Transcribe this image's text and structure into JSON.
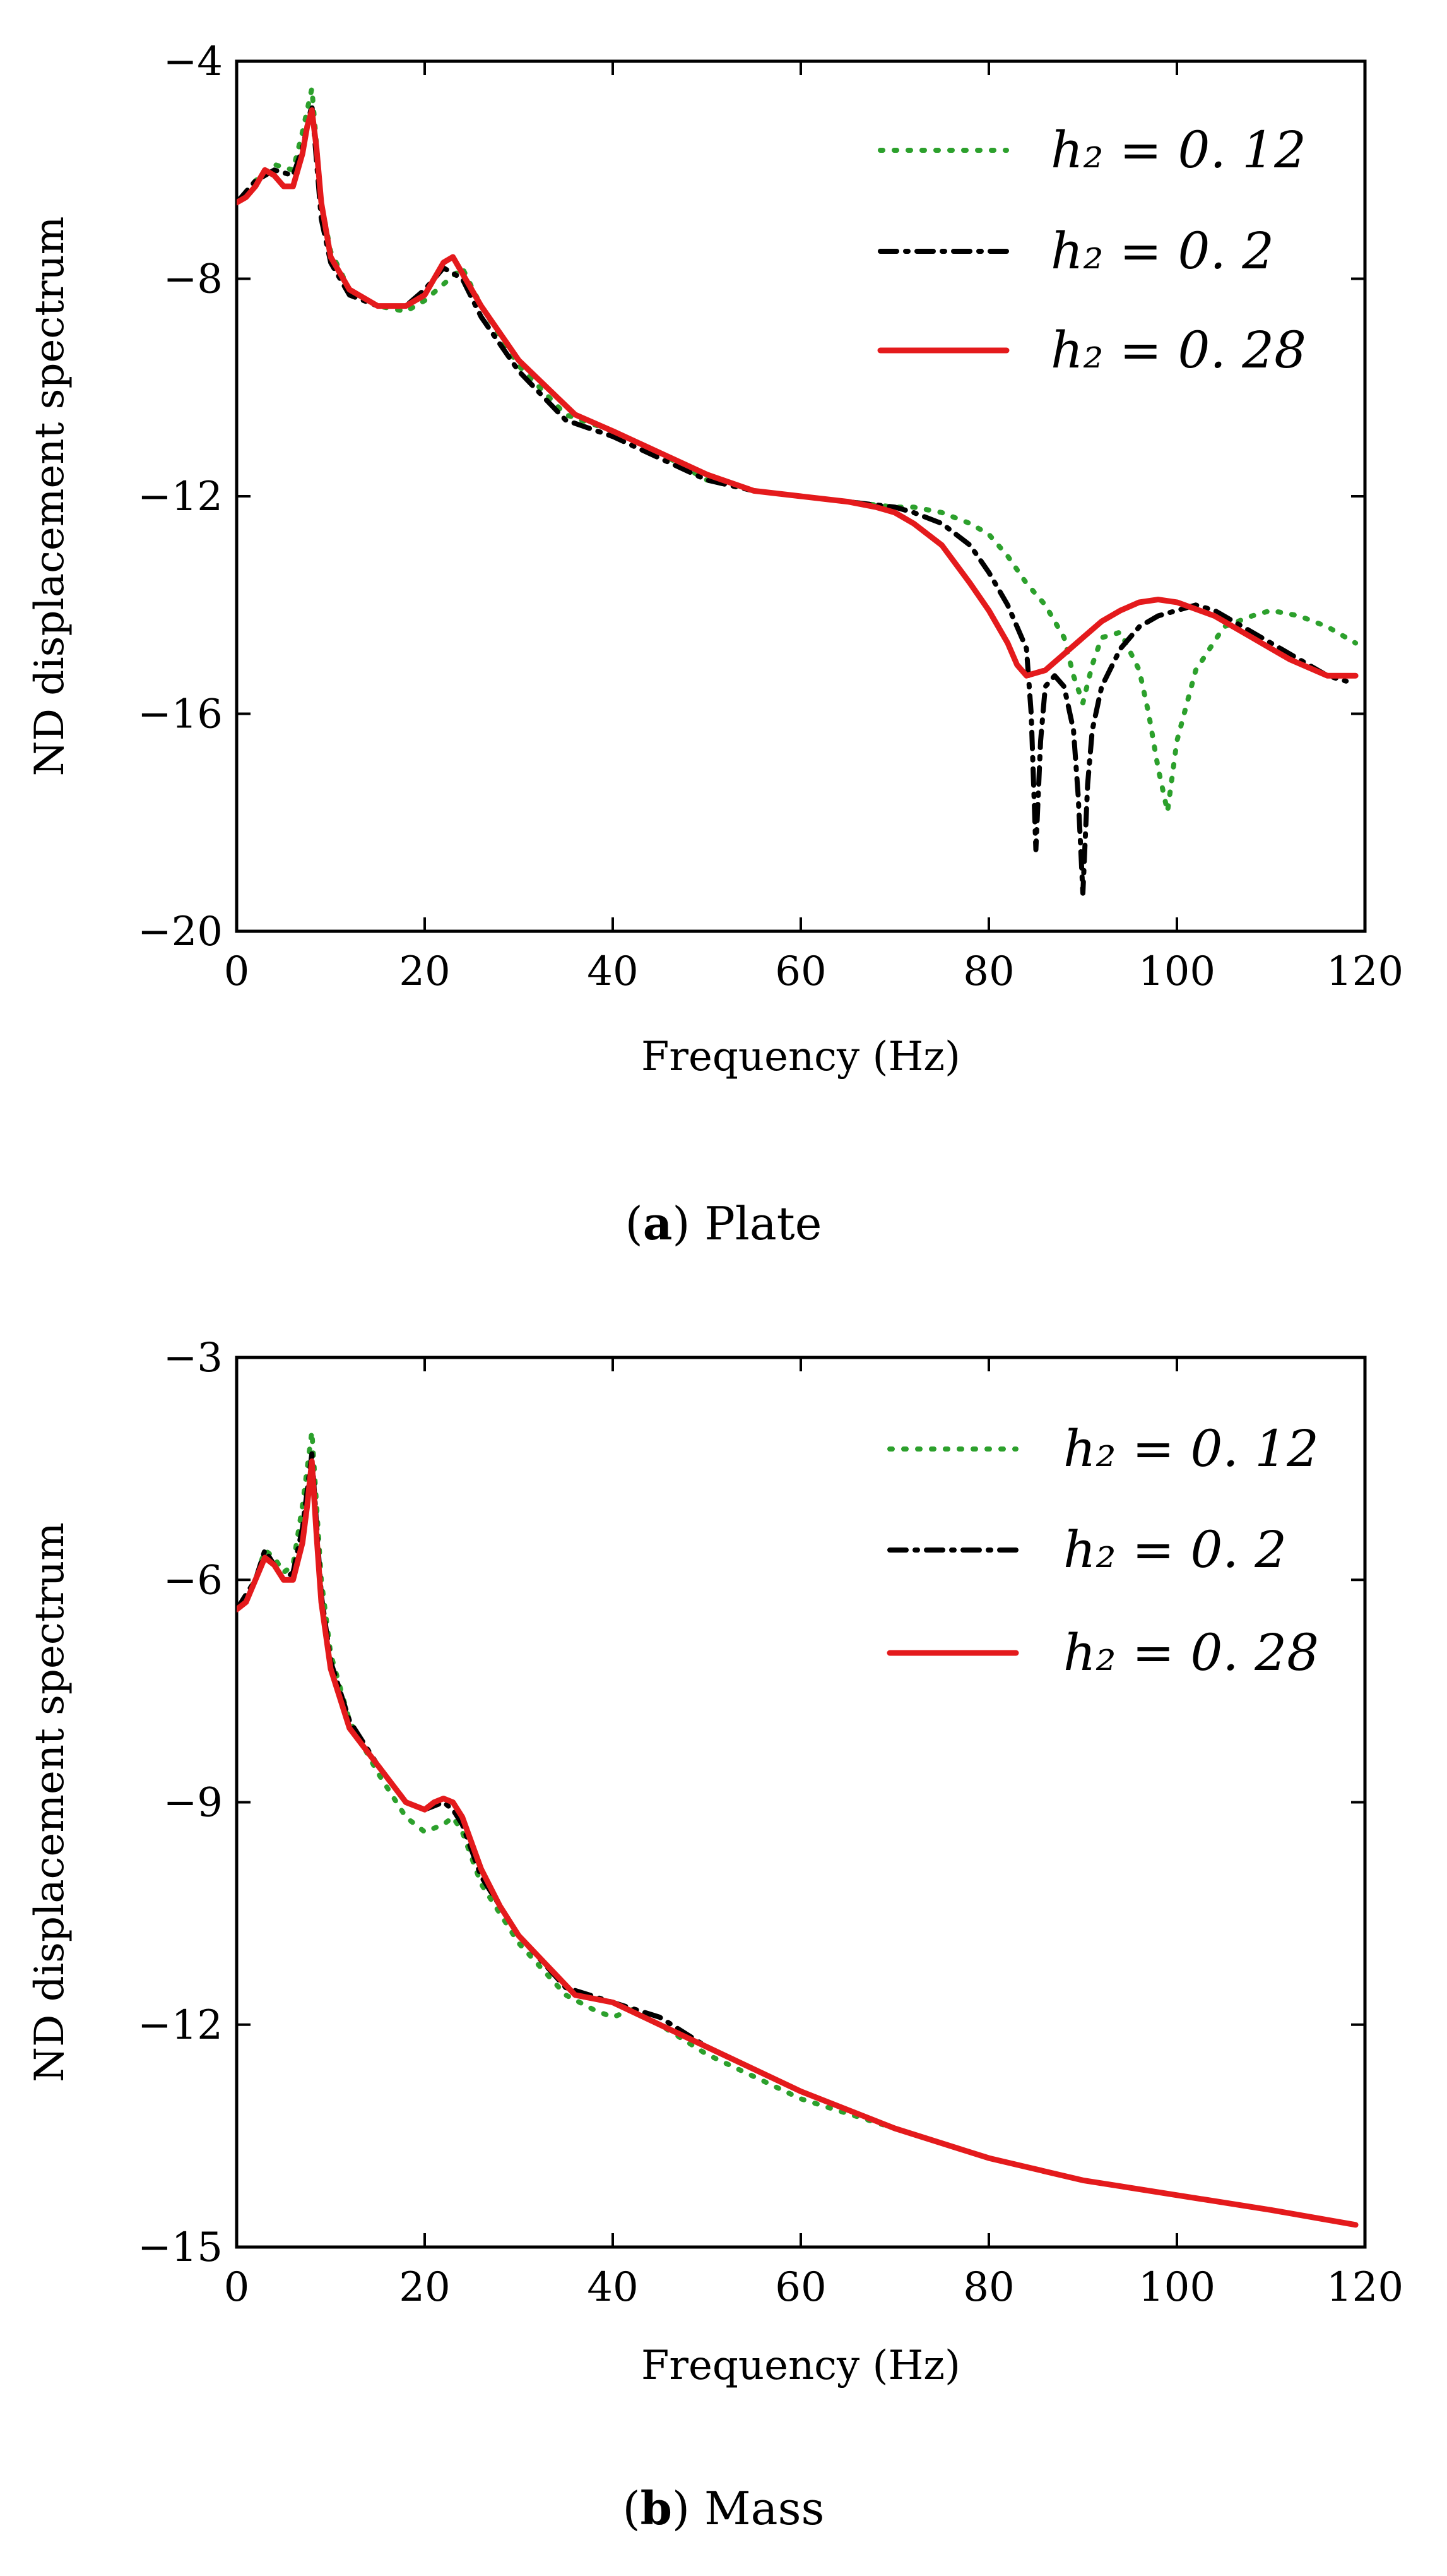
{
  "chart_data": [
    {
      "type": "line",
      "caption": {
        "letter": "a",
        "text": "Plate"
      },
      "xlabel": "Frequency (Hz)",
      "ylabel": "ND displacement spectrum",
      "xlim": [
        0,
        120
      ],
      "ylim": [
        -20,
        -4
      ],
      "xticks": [
        0,
        20,
        40,
        60,
        80,
        100,
        120
      ],
      "yticks": [
        -20,
        -16,
        -12,
        -8,
        -4
      ],
      "legend_position": "top-right",
      "series": [
        {
          "name": "h₂ = 0. 12",
          "style": "dotted",
          "color": "#2ca02c",
          "x": [
            0,
            2,
            4,
            6,
            7,
            8,
            9,
            10,
            12,
            15,
            18,
            20,
            22,
            24,
            26,
            30,
            35,
            40,
            45,
            50,
            55,
            60,
            65,
            70,
            72,
            75,
            78,
            80,
            82,
            84,
            86,
            87,
            88,
            89,
            90,
            91,
            92,
            94,
            96,
            97,
            98,
            99,
            100,
            102,
            105,
            108,
            110,
            113,
            116,
            119
          ],
          "y": [
            -6.6,
            -6.2,
            -5.9,
            -6.0,
            -5.3,
            -4.5,
            -6.6,
            -7.5,
            -8.2,
            -8.5,
            -8.6,
            -8.4,
            -8.1,
            -7.8,
            -8.5,
            -9.6,
            -10.5,
            -10.8,
            -11.2,
            -11.7,
            -11.9,
            -12.0,
            -12.1,
            -12.2,
            -12.2,
            -12.3,
            -12.5,
            -12.7,
            -13.1,
            -13.6,
            -14.0,
            -14.3,
            -14.6,
            -15.3,
            -15.8,
            -15.1,
            -14.6,
            -14.5,
            -15.2,
            -16.0,
            -17.0,
            -17.8,
            -16.5,
            -15.2,
            -14.4,
            -14.2,
            -14.1,
            -14.2,
            -14.4,
            -14.7
          ]
        },
        {
          "name": "h₂ = 0. 2",
          "style": "dashdot",
          "color": "#000000",
          "x": [
            0,
            2,
            4,
            6,
            7,
            8,
            9,
            10,
            12,
            15,
            18,
            20,
            22,
            24,
            26,
            30,
            35,
            40,
            45,
            50,
            55,
            60,
            65,
            70,
            72,
            75,
            78,
            80,
            82,
            84,
            84.5,
            85,
            85.5,
            86,
            87,
            88,
            89,
            89.5,
            90,
            90.5,
            91,
            92,
            94,
            96,
            98,
            100,
            102,
            104,
            106,
            108,
            110,
            113,
            116,
            118
          ],
          "y": [
            -6.6,
            -6.2,
            -6.0,
            -6.1,
            -5.6,
            -4.8,
            -6.9,
            -7.7,
            -8.3,
            -8.5,
            -8.5,
            -8.2,
            -7.8,
            -8.0,
            -8.7,
            -9.7,
            -10.6,
            -10.9,
            -11.3,
            -11.7,
            -11.9,
            -12.0,
            -12.1,
            -12.2,
            -12.3,
            -12.5,
            -12.9,
            -13.4,
            -14.0,
            -14.8,
            -16.0,
            -18.5,
            -16.5,
            -15.5,
            -15.3,
            -15.5,
            -16.3,
            -17.5,
            -19.3,
            -17.3,
            -16.3,
            -15.5,
            -14.8,
            -14.4,
            -14.2,
            -14.1,
            -14.0,
            -14.1,
            -14.3,
            -14.5,
            -14.7,
            -15.0,
            -15.3,
            -15.4
          ]
        },
        {
          "name": "h₂ = 0. 28",
          "style": "solid",
          "color": "#e41a1c",
          "x": [
            0,
            1,
            2,
            3,
            4,
            5,
            6,
            7,
            7.5,
            8,
            8.5,
            9,
            10,
            12,
            15,
            18,
            20,
            21,
            22,
            23,
            24,
            26,
            28,
            30,
            33,
            36,
            40,
            45,
            50,
            55,
            60,
            65,
            68,
            70,
            72,
            75,
            78,
            80,
            82,
            83,
            84,
            86,
            88,
            90,
            92,
            94,
            96,
            98,
            100,
            104,
            108,
            112,
            116,
            119
          ],
          "y": [
            -6.6,
            -6.5,
            -6.3,
            -6.0,
            -6.1,
            -6.3,
            -6.3,
            -5.7,
            -5.2,
            -4.9,
            -5.6,
            -6.6,
            -7.6,
            -8.2,
            -8.5,
            -8.5,
            -8.3,
            -8.0,
            -7.7,
            -7.6,
            -7.9,
            -8.5,
            -9.0,
            -9.5,
            -10.0,
            -10.5,
            -10.8,
            -11.2,
            -11.6,
            -11.9,
            -12.0,
            -12.1,
            -12.2,
            -12.3,
            -12.5,
            -12.9,
            -13.6,
            -14.1,
            -14.7,
            -15.1,
            -15.3,
            -15.2,
            -14.9,
            -14.6,
            -14.3,
            -14.1,
            -13.95,
            -13.9,
            -13.95,
            -14.2,
            -14.6,
            -15.0,
            -15.3,
            -15.3
          ]
        }
      ]
    },
    {
      "type": "line",
      "caption": {
        "letter": "b",
        "text": "Mass"
      },
      "xlabel": "Frequency (Hz)",
      "ylabel": "ND displacement spectrum",
      "xlim": [
        0,
        120
      ],
      "ylim": [
        -15,
        -3
      ],
      "xticks": [
        0,
        20,
        40,
        60,
        80,
        100,
        120
      ],
      "yticks": [
        -15,
        -12,
        -9,
        -6,
        -3
      ],
      "legend_position": "top-right",
      "series": [
        {
          "name": "h₂ = 0. 12",
          "style": "dotted",
          "color": "#2ca02c",
          "x": [
            0,
            2,
            3,
            4,
            5,
            6,
            7,
            8,
            9,
            10,
            12,
            15,
            18,
            20,
            22,
            23,
            24,
            26,
            30,
            35,
            38,
            40,
            42,
            45,
            50,
            55,
            60,
            70,
            80,
            90,
            100,
            110,
            119
          ],
          "y": [
            -6.4,
            -6.0,
            -5.6,
            -5.7,
            -5.9,
            -5.8,
            -5.0,
            -4.0,
            -6.0,
            -7.0,
            -7.9,
            -8.6,
            -9.2,
            -9.4,
            -9.3,
            -9.2,
            -9.4,
            -10.1,
            -10.9,
            -11.6,
            -11.8,
            -11.9,
            -11.8,
            -12.0,
            -12.4,
            -12.7,
            -13.0,
            -13.4,
            -13.8,
            -14.1,
            -14.3,
            -14.5,
            -14.7
          ]
        },
        {
          "name": "h₂ = 0. 2",
          "style": "dashdot",
          "color": "#000000",
          "x": [
            0,
            2,
            3,
            4,
            5,
            6,
            7,
            8,
            9,
            10,
            12,
            15,
            18,
            20,
            22,
            23,
            24,
            26,
            30,
            35,
            40,
            45,
            50,
            55,
            60,
            70,
            80,
            90,
            100,
            110,
            119
          ],
          "y": [
            -6.4,
            -6.0,
            -5.6,
            -5.8,
            -6.0,
            -5.9,
            -5.3,
            -4.3,
            -6.2,
            -7.1,
            -7.9,
            -8.5,
            -9.0,
            -9.1,
            -9.0,
            -9.1,
            -9.3,
            -10.0,
            -10.8,
            -11.5,
            -11.7,
            -11.9,
            -12.3,
            -12.6,
            -12.9,
            -13.4,
            -13.8,
            -14.1,
            -14.3,
            -14.5,
            -14.7
          ]
        },
        {
          "name": "h₂ = 0. 28",
          "style": "solid",
          "color": "#e41a1c",
          "x": [
            0,
            1,
            2,
            3,
            4,
            5,
            6,
            7,
            7.5,
            8,
            8.5,
            9,
            10,
            12,
            15,
            18,
            20,
            21,
            22,
            23,
            24,
            26,
            28,
            30,
            33,
            36,
            40,
            45,
            50,
            55,
            60,
            70,
            80,
            90,
            100,
            110,
            119
          ],
          "y": [
            -6.4,
            -6.3,
            -6.0,
            -5.7,
            -5.8,
            -6.0,
            -6.0,
            -5.5,
            -5.0,
            -4.4,
            -5.4,
            -6.3,
            -7.2,
            -8.0,
            -8.5,
            -9.0,
            -9.1,
            -9.0,
            -8.95,
            -9.0,
            -9.2,
            -9.9,
            -10.4,
            -10.8,
            -11.2,
            -11.6,
            -11.7,
            -12.0,
            -12.3,
            -12.6,
            -12.9,
            -13.4,
            -13.8,
            -14.1,
            -14.3,
            -14.5,
            -14.7
          ]
        }
      ]
    }
  ]
}
